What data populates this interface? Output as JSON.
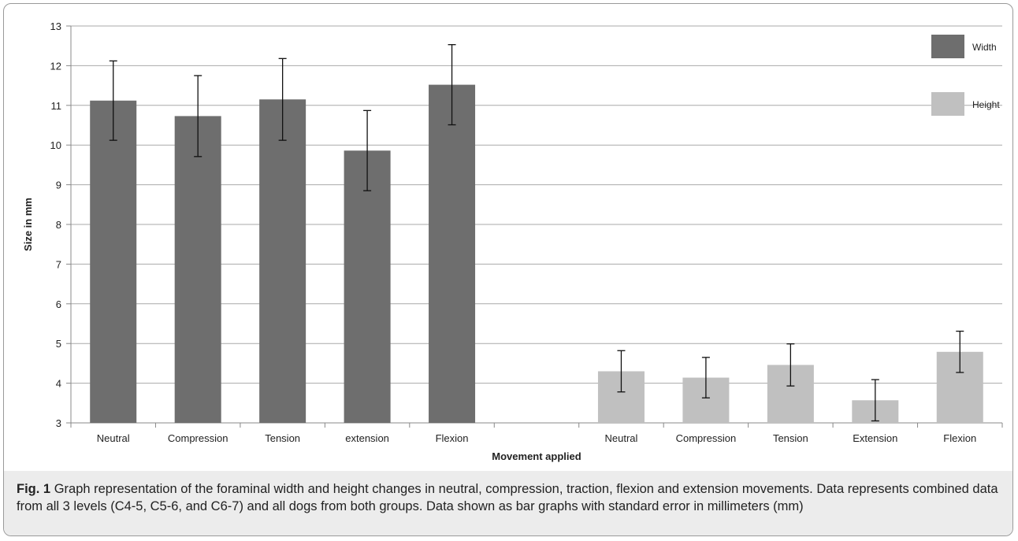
{
  "chart_data": {
    "type": "bar",
    "categories": [
      "Neutral",
      "Compression",
      "Tension",
      "extension",
      "Flexion",
      "",
      "Neutral",
      "Compression",
      "Tension",
      "Extension",
      "Flexion"
    ],
    "series": [
      {
        "name": "Width",
        "color": "#6e6e6e",
        "values": [
          11.12,
          10.73,
          11.15,
          9.86,
          11.52,
          null,
          null,
          null,
          null,
          null,
          null
        ],
        "errors": [
          1.0,
          1.02,
          1.03,
          1.01,
          1.01,
          null,
          null,
          null,
          null,
          null,
          null
        ]
      },
      {
        "name": "Height",
        "color": "#c0c0c0",
        "values": [
          null,
          null,
          null,
          null,
          null,
          null,
          4.3,
          4.14,
          4.46,
          3.57,
          4.79
        ],
        "errors": [
          null,
          null,
          null,
          null,
          null,
          null,
          0.52,
          0.51,
          0.53,
          0.52,
          0.52
        ]
      }
    ],
    "ylim": [
      3,
      13
    ],
    "yticks": [
      "3",
      "4",
      "5",
      "6",
      "7",
      "8",
      "9",
      "10",
      "11",
      "12",
      "13"
    ],
    "xlabel": "Movement applied",
    "ylabel": "Size in mm",
    "legend_position": "top-right",
    "grid": true
  },
  "caption": {
    "label": "Fig. 1",
    "text": "Graph representation of the foraminal width and height changes in neutral, compression, traction, flexion and extension movements. Data represents combined data from all 3 levels (C4-5, C5-6, and C6-7) and all dogs from both groups. Data shown as bar graphs with standard error in millimeters (mm)"
  }
}
